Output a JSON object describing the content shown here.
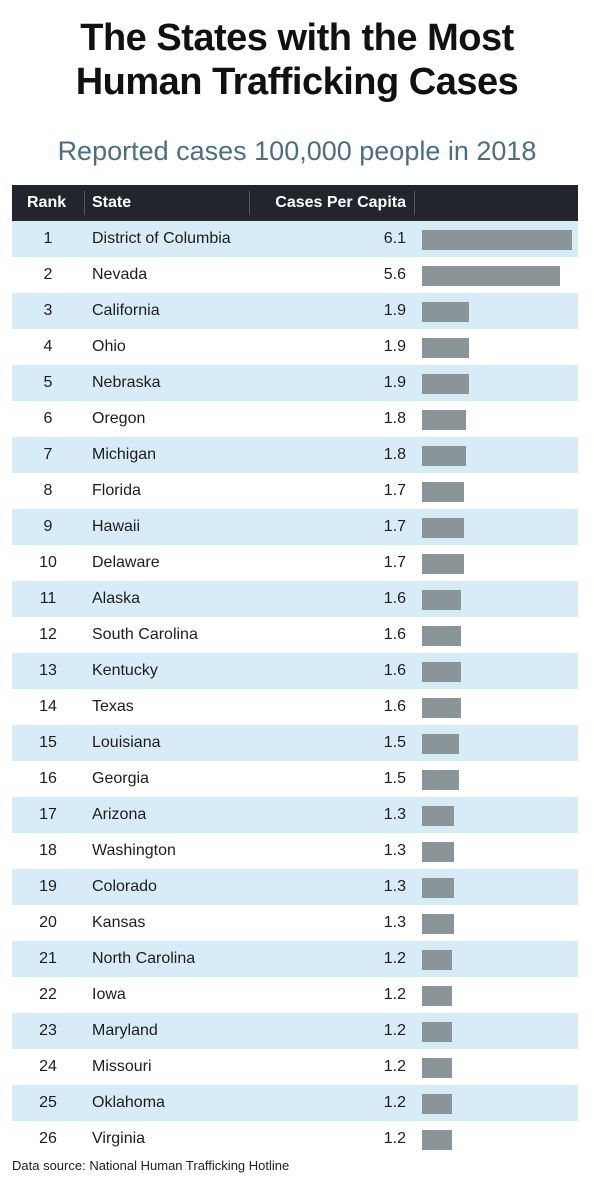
{
  "title_line1": "The States with the Most",
  "title_line2": "Human Trafficking Cases",
  "subtitle": "Reported cases 100,000 people in 2018",
  "headers": {
    "rank": "Rank",
    "state": "State",
    "cases": "Cases Per Capita"
  },
  "source": "Data source: National Human Trafficking Hotline",
  "colors": {
    "header_bg": "#22252b",
    "row_alt": "#d7ecf6",
    "bar": "#8a9599",
    "subtitle": "#4a6f80"
  },
  "chart_data": {
    "type": "table",
    "title": "The States with the Most Human Trafficking Cases",
    "subtitle": "Reported cases 100,000 people in 2018",
    "columns": [
      "Rank",
      "State",
      "Cases Per Capita"
    ],
    "max_value": 6.1,
    "rows": [
      {
        "rank": "1",
        "state": "District of Columbia",
        "value": "6.1"
      },
      {
        "rank": "2",
        "state": "Nevada",
        "value": "5.6"
      },
      {
        "rank": "3",
        "state": "California",
        "value": "1.9"
      },
      {
        "rank": "4",
        "state": "Ohio",
        "value": "1.9"
      },
      {
        "rank": "5",
        "state": "Nebraska",
        "value": "1.9"
      },
      {
        "rank": "6",
        "state": "Oregon",
        "value": "1.8"
      },
      {
        "rank": "7",
        "state": "Michigan",
        "value": "1.8"
      },
      {
        "rank": "8",
        "state": "Florida",
        "value": "1.7"
      },
      {
        "rank": "9",
        "state": "Hawaii",
        "value": "1.7"
      },
      {
        "rank": "10",
        "state": "Delaware",
        "value": "1.7"
      },
      {
        "rank": "11",
        "state": "Alaska",
        "value": "1.6"
      },
      {
        "rank": "12",
        "state": "South Carolina",
        "value": "1.6"
      },
      {
        "rank": "13",
        "state": "Kentucky",
        "value": "1.6"
      },
      {
        "rank": "14",
        "state": "Texas",
        "value": "1.6"
      },
      {
        "rank": "15",
        "state": "Louisiana",
        "value": "1.5"
      },
      {
        "rank": "16",
        "state": "Georgia",
        "value": "1.5"
      },
      {
        "rank": "17",
        "state": "Arizona",
        "value": "1.3"
      },
      {
        "rank": "18",
        "state": "Washington",
        "value": "1.3"
      },
      {
        "rank": "19",
        "state": "Colorado",
        "value": "1.3"
      },
      {
        "rank": "20",
        "state": "Kansas",
        "value": "1.3"
      },
      {
        "rank": "21",
        "state": "North Carolina",
        "value": "1.2"
      },
      {
        "rank": "22",
        "state": "Iowa",
        "value": "1.2"
      },
      {
        "rank": "23",
        "state": "Maryland",
        "value": "1.2"
      },
      {
        "rank": "24",
        "state": "Missouri",
        "value": "1.2"
      },
      {
        "rank": "25",
        "state": "Oklahoma",
        "value": "1.2"
      },
      {
        "rank": "26",
        "state": "Virginia",
        "value": "1.2"
      }
    ]
  }
}
